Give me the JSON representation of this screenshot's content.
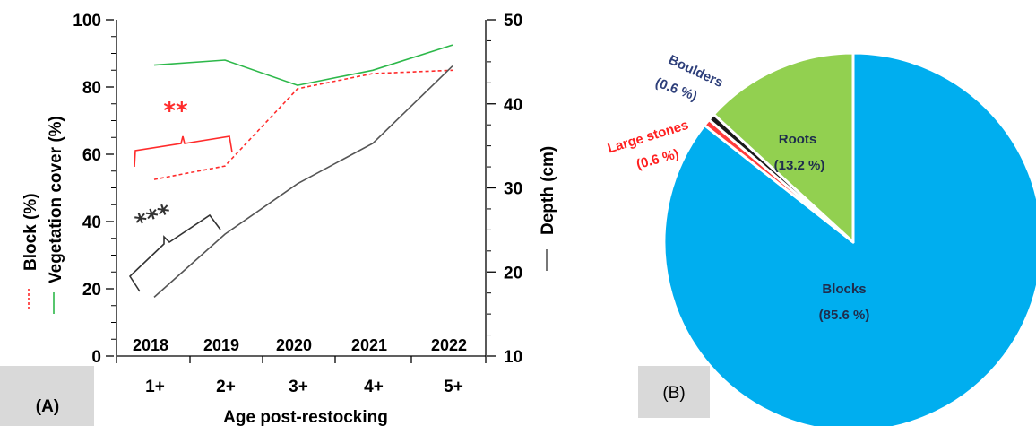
{
  "chart_data": [
    {
      "type": "line",
      "panel_label": "(A)",
      "categories": [
        "1+",
        "2+",
        "3+",
        "4+",
        "5+"
      ],
      "year_labels": [
        "2018",
        "2019",
        "2020",
        "2021",
        "2022"
      ],
      "xlabel": "Age post-restocking",
      "left_axis": {
        "ylim": [
          0,
          100
        ],
        "ticks": [
          "0",
          "20",
          "40",
          "60",
          "80",
          "100"
        ],
        "label_block": "Block (%)",
        "label_vegetation": "Vegetation cover (%)"
      },
      "right_axis": {
        "ylim": [
          10,
          50
        ],
        "ticks": [
          "10",
          "20",
          "30",
          "40",
          "50"
        ],
        "label": "Depth (cm)"
      },
      "series": [
        {
          "name": "Vegetation cover (%)",
          "axis": "left",
          "color": "#2db84a",
          "style": "solid",
          "values": [
            86.5,
            88,
            80.5,
            85,
            92.5
          ]
        },
        {
          "name": "Block (%)",
          "axis": "left",
          "color": "#ff2b2b",
          "style": "dashed",
          "values": [
            52.5,
            56.5,
            79.5,
            84,
            85
          ]
        },
        {
          "name": "Depth (cm)",
          "axis": "right",
          "color": "#555555",
          "style": "solid",
          "values": [
            17,
            24.5,
            30.5,
            35.3,
            44.5
          ]
        }
      ],
      "annotations": [
        {
          "text": "**",
          "color": "#ff2b2b"
        },
        {
          "text": "***",
          "color": "#333333"
        }
      ],
      "grid": false
    },
    {
      "type": "pie",
      "panel_label": "(B)",
      "slices": [
        {
          "label": "Blocks",
          "value_text": "(85.6 %)",
          "value": 85.6,
          "color": "#00aeef",
          "text_color": "#1f2d4d"
        },
        {
          "label": "Large stones",
          "value_text": "(0.6 %)",
          "value": 0.6,
          "color": "#ff3b3b",
          "text_color": "#ff1f1f"
        },
        {
          "label": "Boulders",
          "value_text": "(0.6 %)",
          "value": 0.6,
          "color": "#1a1a1a",
          "text_color": "#2e3f7a"
        },
        {
          "label": "Roots",
          "value_text": "(13.2 %)",
          "value": 13.2,
          "color": "#92d050",
          "text_color": "#1f2d4d"
        }
      ]
    }
  ]
}
